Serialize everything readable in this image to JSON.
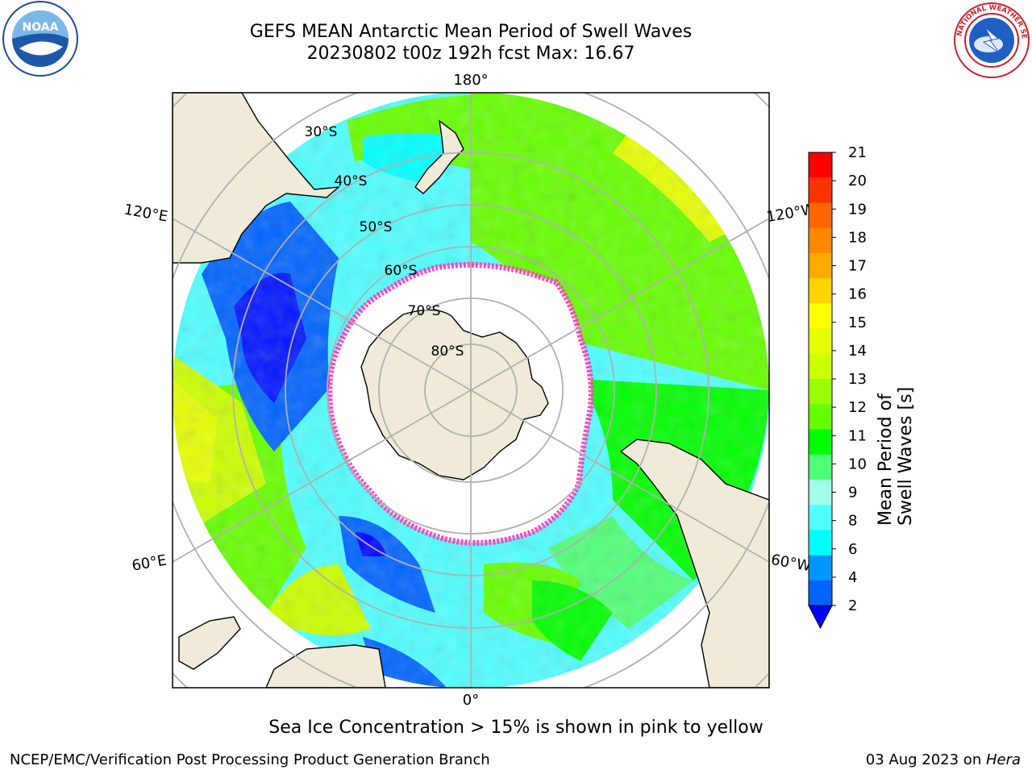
{
  "header": {
    "title_line1": "GEFS MEAN Antarctic Mean Period of Swell Waves",
    "title_line2": "20230802 t00z 192h fcst   Max: 16.67"
  },
  "logos": {
    "left": {
      "name": "noaa-logo",
      "text": "NOAA"
    },
    "right": {
      "name": "nws-logo",
      "text": "NATIONAL WEATHER SERVICE"
    }
  },
  "map": {
    "projection": "south-polar-stereographic",
    "longitude_labels": [
      "180°",
      "120°E",
      "120°W",
      "60°E",
      "60°W",
      "0°"
    ],
    "latitude_labels": [
      "30°S",
      "40°S",
      "50°S",
      "60°S",
      "70°S",
      "80°S"
    ],
    "colors": {
      "land": "#efebd8",
      "ice_edge": "#ff3fcf",
      "grid": "#b0b0b0"
    }
  },
  "colorbar": {
    "label": "Mean Period of Swell Waves [s]",
    "ticks": [
      "21",
      "20",
      "19",
      "18",
      "17",
      "16",
      "15",
      "14",
      "13",
      "12",
      "11",
      "10",
      "9",
      "8",
      "6",
      "4",
      "2"
    ],
    "colors": [
      "#ff0000",
      "#ff3300",
      "#ff6600",
      "#ff8800",
      "#ffaa00",
      "#ffd400",
      "#ffff00",
      "#e6ff00",
      "#ccff00",
      "#99ff00",
      "#66ff00",
      "#00ff00",
      "#50ff78",
      "#a0ffe6",
      "#50ffff",
      "#00ffff",
      "#0096ff",
      "#0064ff"
    ],
    "extend_color": "#0000ff"
  },
  "notes": {
    "sea_ice": "Sea Ice Concentration > 15% is shown in pink to yellow",
    "footer_left": "NCEP/EMC/Verification Post Processing Product Generation Branch",
    "footer_date": "03 Aug 2023 on ",
    "footer_machine": "Hera"
  }
}
